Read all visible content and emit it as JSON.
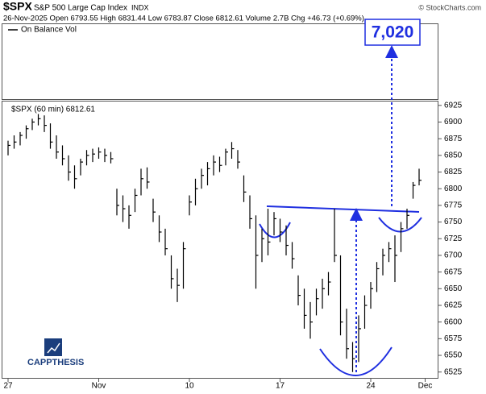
{
  "chart_data": {
    "type": "hlc",
    "symbol": "$SPX",
    "name": "S&P 500 Large Cap Index",
    "exchange": "INDX",
    "quote_line": "26-Nov-2025   Open 6793.55  High 6831.44  Low 6783.87  Close 6812.61  Volume 2.7B  Chg +46.73 (+0.69%)",
    "credit": "© StockCharts.com",
    "indicator_label": "On Balance Vol",
    "price_label": "$SPX (60 min) 6812.61",
    "target_label": "7,020",
    "brand": "CAPPTHESIS",
    "color": "#000000",
    "annotation_color": "#1f2fe0",
    "ylim": [
      6515,
      6932
    ],
    "yticks": [
      6525,
      6550,
      6575,
      6600,
      6625,
      6650,
      6675,
      6700,
      6725,
      6750,
      6775,
      6800,
      6825,
      6850,
      6875,
      6900,
      6925
    ],
    "xlim": [
      -1,
      71
    ],
    "xticks": [
      {
        "value": 0,
        "label": "27"
      },
      {
        "value": 15,
        "label": "Nov"
      },
      {
        "value": 30,
        "label": "10"
      },
      {
        "value": 45,
        "label": "17"
      },
      {
        "value": 60,
        "label": "24"
      },
      {
        "value": 69,
        "label": "Dec"
      }
    ],
    "series": [
      {
        "name": "high",
        "values": [
          6872,
          6880,
          6885,
          6895,
          6905,
          6912,
          6910,
          6898,
          6880,
          6865,
          6850,
          6835,
          6845,
          6858,
          6860,
          6862,
          6860,
          6855,
          6800,
          6790,
          6775,
          6800,
          6830,
          6832,
          6785,
          6760,
          6740,
          6700,
          6680,
          6720,
          6790,
          6815,
          6830,
          6840,
          6850,
          6848,
          6860,
          6870,
          6858,
          6820,
          6790,
          6760,
          6740,
          6770,
          6765,
          6755,
          6745,
          6720,
          6670,
          6650,
          6630,
          6650,
          6665,
          6675,
          6770,
          6700,
          6620,
          6570,
          6610,
          6640,
          6660,
          6690,
          6710,
          6720,
          6730,
          6750,
          6770,
          6810,
          6830
        ]
      },
      {
        "name": "low",
        "values": [
          6850,
          6860,
          6865,
          6875,
          6888,
          6895,
          6885,
          6860,
          6845,
          6835,
          6812,
          6800,
          6820,
          6835,
          6840,
          6845,
          6840,
          6838,
          6760,
          6750,
          6740,
          6765,
          6790,
          6800,
          6750,
          6720,
          6700,
          6650,
          6630,
          6650,
          6760,
          6775,
          6800,
          6805,
          6820,
          6825,
          6835,
          6845,
          6830,
          6780,
          6740,
          6650,
          6690,
          6700,
          6730,
          6720,
          6700,
          6680,
          6625,
          6590,
          6575,
          6610,
          6620,
          6640,
          6690,
          6580,
          6545,
          6525,
          6540,
          6590,
          6620,
          6645,
          6670,
          6690,
          6660,
          6705,
          6740,
          6785,
          6805
        ]
      },
      {
        "name": "close",
        "values": [
          6865,
          6870,
          6880,
          6890,
          6900,
          6905,
          6895,
          6870,
          6855,
          6845,
          6825,
          6815,
          6840,
          6850,
          6852,
          6855,
          6850,
          6845,
          6775,
          6770,
          6760,
          6790,
          6815,
          6810,
          6765,
          6735,
          6710,
          6665,
          6655,
          6710,
          6780,
          6800,
          6820,
          6830,
          6840,
          6835,
          6855,
          6860,
          6840,
          6795,
          6755,
          6700,
          6725,
          6720,
          6755,
          6735,
          6715,
          6695,
          6640,
          6610,
          6600,
          6635,
          6650,
          6660,
          6700,
          6600,
          6560,
          6545,
          6590,
          6625,
          6650,
          6680,
          6700,
          6710,
          6700,
          6740,
          6760,
          6805,
          6812.61
        ]
      }
    ]
  }
}
